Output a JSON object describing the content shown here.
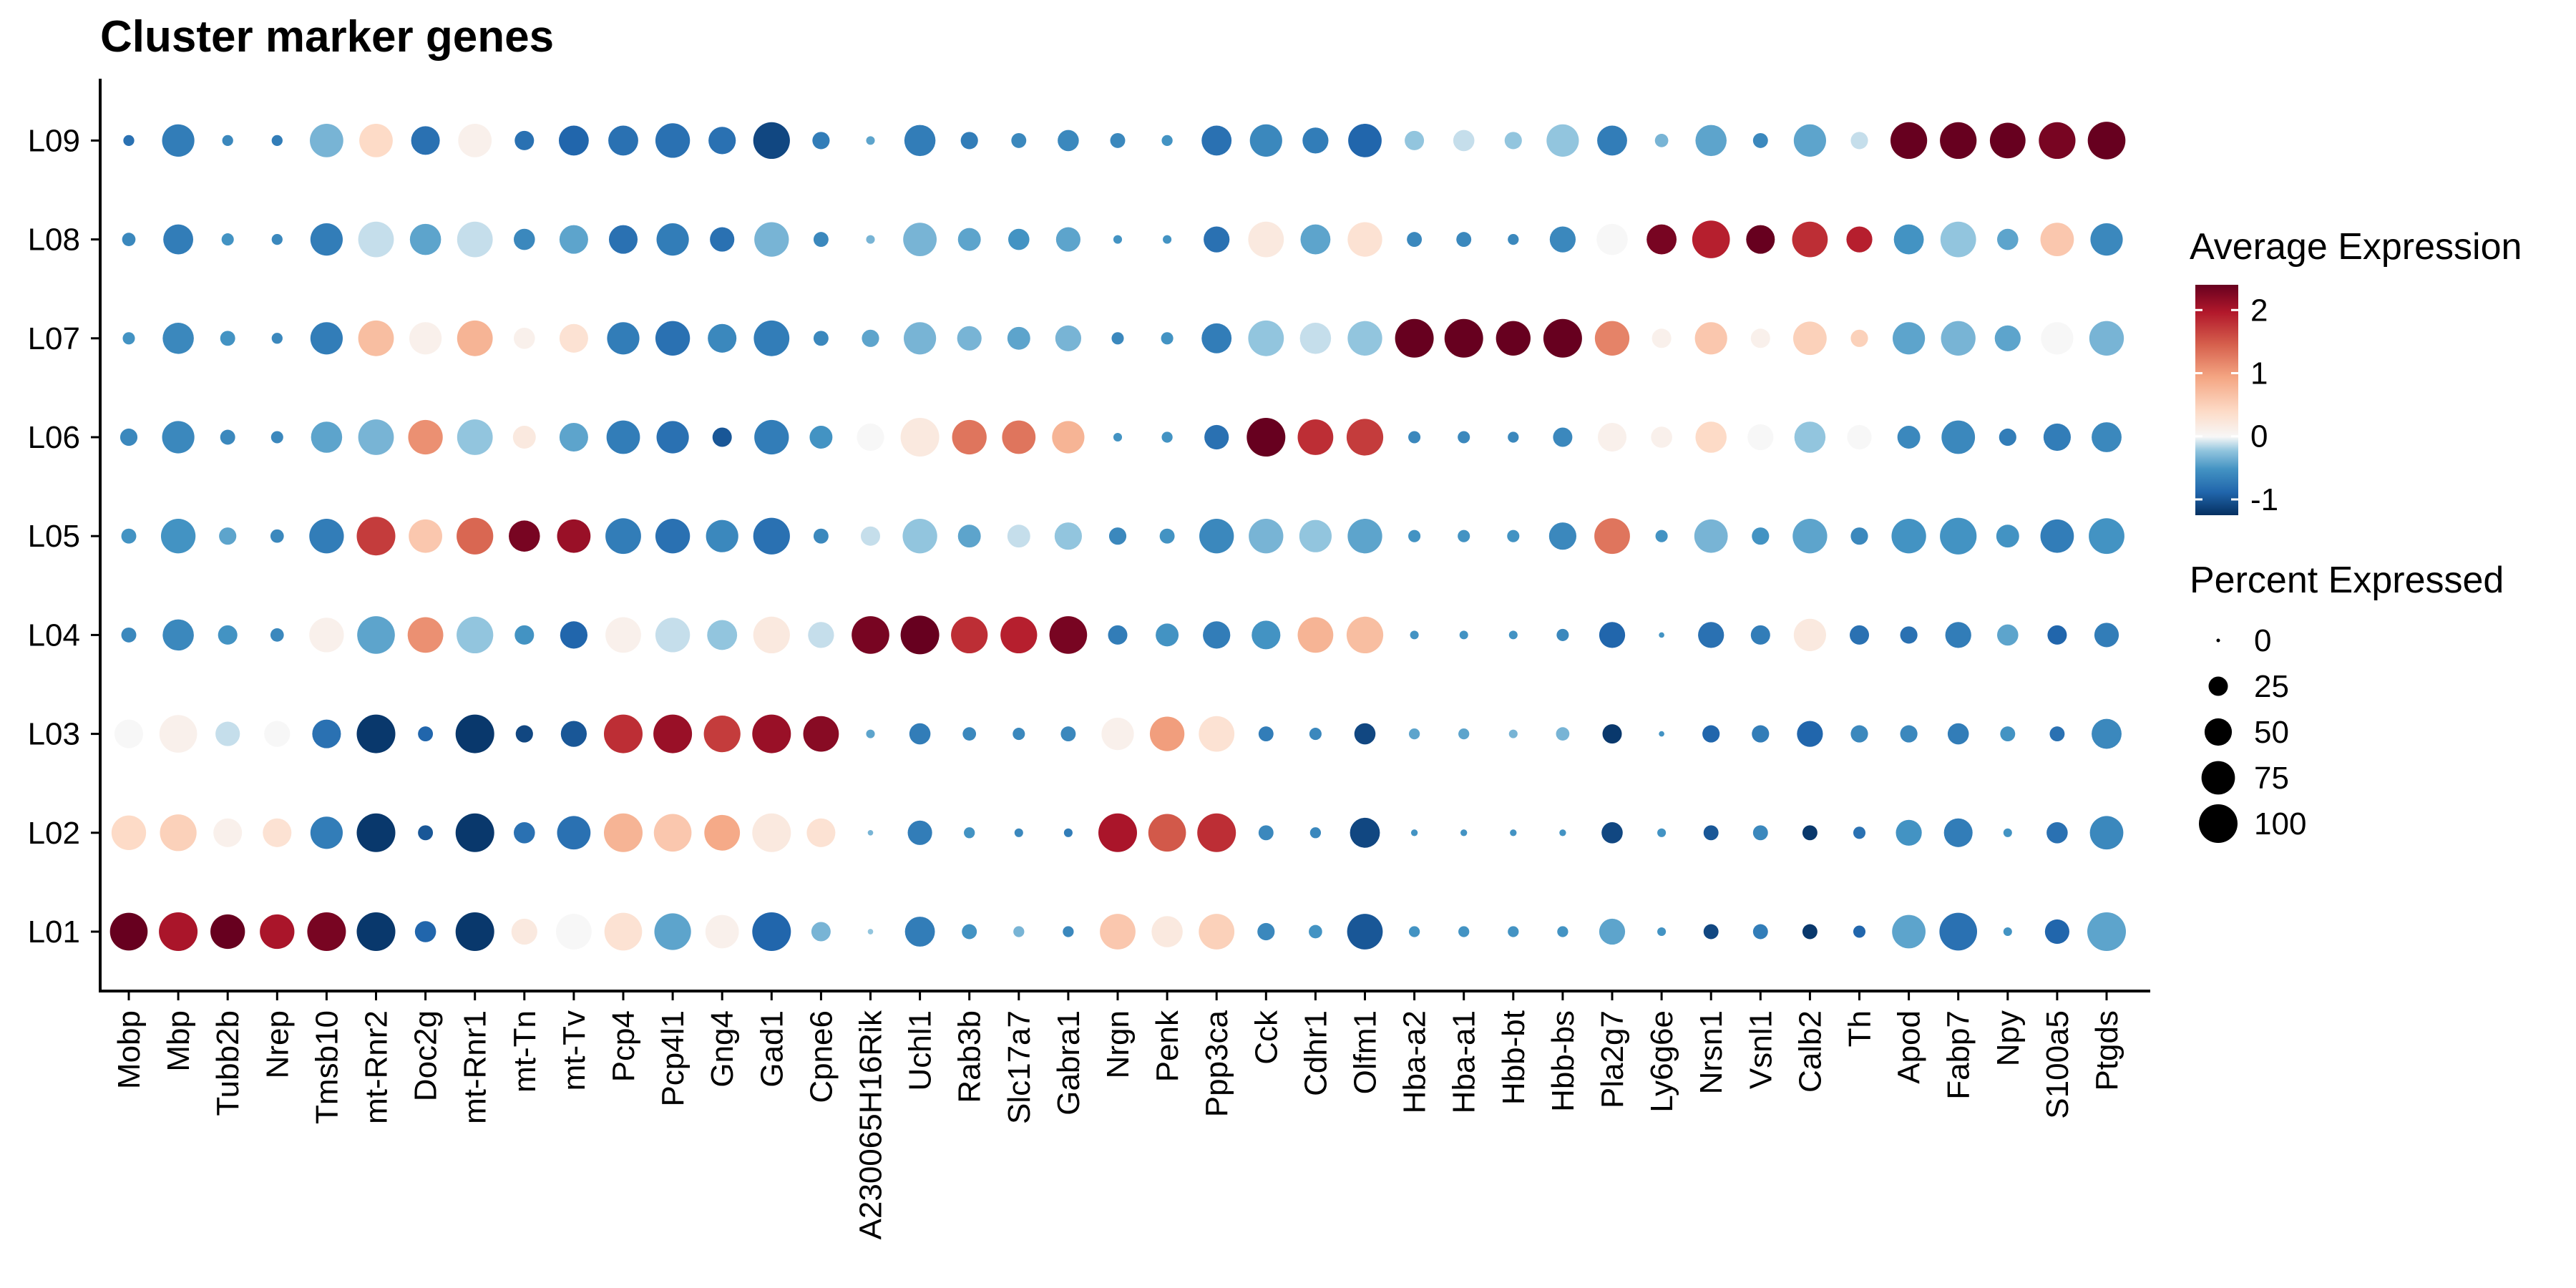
{
  "chart_data": {
    "type": "dotplot",
    "title": "Cluster marker genes",
    "xlabel": "",
    "ylabel": "",
    "genes": [
      "Mobp",
      "Mbp",
      "Tubb2b",
      "Nrep",
      "Tmsb10",
      "mt-Rnr2",
      "Doc2g",
      "mt-Rnr1",
      "mt-Tn",
      "mt-Tv",
      "Pcp4",
      "Pcp4l1",
      "Gng4",
      "Gad1",
      "Cpne6",
      "A230065H16Rik",
      "Uchl1",
      "Rab3b",
      "Slc17a7",
      "Gabra1",
      "Nrgn",
      "Penk",
      "Ppp3ca",
      "Cck",
      "Cdhr1",
      "Olfm1",
      "Hba-a2",
      "Hba-a1",
      "Hbb-bt",
      "Hbb-bs",
      "Pla2g7",
      "Ly6g6e",
      "Nrsn1",
      "Vsnl1",
      "Calb2",
      "Th",
      "Apod",
      "Fabp7",
      "Npy",
      "S100a5",
      "Ptgds"
    ],
    "clusters": [
      "L01",
      "L02",
      "L03",
      "L04",
      "L05",
      "L06",
      "L07",
      "L08",
      "L09"
    ],
    "color_scale": {
      "name": "Average Expression",
      "range": [
        -1.25,
        2.4
      ],
      "ticks": [
        -1,
        0,
        1,
        2
      ],
      "low_color": "#053061",
      "mid_color": "#f7f7f7",
      "high_color": "#67001f"
    },
    "size_scale": {
      "name": "Percent Expressed",
      "range": [
        0,
        100
      ],
      "ticks": [
        0,
        25,
        50,
        75,
        100
      ]
    },
    "grid": false,
    "legend_position": "right",
    "avg_expression": [
      [
        2.4,
        2.0,
        2.4,
        2.0,
        2.3,
        -1.2,
        -0.9,
        -1.2,
        0.2,
        0.0,
        0.3,
        -0.4,
        0.1,
        -0.9,
        -0.3,
        -0.2,
        -0.7,
        -0.5,
        -0.3,
        -0.6,
        0.6,
        0.2,
        0.5,
        -0.6,
        -0.5,
        -1.0,
        -0.5,
        -0.5,
        -0.5,
        -0.5,
        -0.4,
        -0.5,
        -1.1,
        -0.7,
        -1.2,
        -0.9,
        -0.4,
        -0.8,
        -0.5,
        -0.9,
        -0.4
      ],
      [
        0.4,
        0.5,
        0.1,
        0.3,
        -0.7,
        -1.2,
        -1.0,
        -1.2,
        -0.8,
        -0.8,
        0.8,
        0.6,
        0.9,
        0.2,
        0.3,
        -0.3,
        -0.7,
        -0.5,
        -0.6,
        -0.7,
        2.0,
        1.5,
        1.8,
        -0.6,
        -0.6,
        -1.1,
        -0.5,
        -0.5,
        -0.5,
        -0.5,
        -1.1,
        -0.5,
        -1.0,
        -0.6,
        -1.2,
        -0.8,
        -0.5,
        -0.7,
        -0.5,
        -0.8,
        -0.6
      ],
      [
        0.0,
        0.1,
        -0.1,
        0.0,
        -0.8,
        -1.2,
        -0.9,
        -1.2,
        -1.1,
        -1.0,
        1.8,
        2.1,
        1.7,
        2.1,
        2.2,
        -0.4,
        -0.7,
        -0.6,
        -0.6,
        -0.6,
        0.1,
        1.0,
        0.3,
        -0.7,
        -0.6,
        -1.1,
        -0.4,
        -0.4,
        -0.3,
        -0.3,
        -1.2,
        -0.5,
        -0.9,
        -0.7,
        -0.9,
        -0.6,
        -0.6,
        -0.7,
        -0.5,
        -0.8,
        -0.6
      ],
      [
        -0.6,
        -0.6,
        -0.5,
        -0.6,
        0.1,
        -0.4,
        1.1,
        -0.2,
        -0.5,
        -0.9,
        0.1,
        -0.1,
        -0.2,
        0.2,
        -0.1,
        2.3,
        2.4,
        1.8,
        1.9,
        2.3,
        -0.7,
        -0.5,
        -0.7,
        -0.5,
        0.8,
        0.7,
        -0.5,
        -0.5,
        -0.5,
        -0.6,
        -0.9,
        -0.5,
        -0.8,
        -0.7,
        0.2,
        -0.8,
        -0.8,
        -0.7,
        -0.4,
        -0.9,
        -0.7
      ],
      [
        -0.5,
        -0.5,
        -0.4,
        -0.6,
        -0.7,
        1.7,
        0.6,
        1.4,
        2.3,
        2.1,
        -0.7,
        -0.8,
        -0.6,
        -0.8,
        -0.6,
        -0.1,
        -0.2,
        -0.4,
        -0.1,
        -0.2,
        -0.6,
        -0.5,
        -0.6,
        -0.3,
        -0.2,
        -0.4,
        -0.5,
        -0.5,
        -0.5,
        -0.6,
        1.3,
        -0.5,
        -0.3,
        -0.5,
        -0.4,
        -0.6,
        -0.5,
        -0.5,
        -0.5,
        -0.7,
        -0.5
      ],
      [
        -0.6,
        -0.6,
        -0.6,
        -0.6,
        -0.4,
        -0.3,
        1.1,
        -0.2,
        0.2,
        -0.4,
        -0.7,
        -0.8,
        -1.0,
        -0.7,
        -0.5,
        0.0,
        0.2,
        1.3,
        1.3,
        0.8,
        -0.5,
        -0.5,
        -0.8,
        2.4,
        1.8,
        1.7,
        -0.6,
        -0.6,
        -0.6,
        -0.6,
        0.1,
        0.1,
        0.4,
        0.0,
        -0.2,
        0.0,
        -0.6,
        -0.6,
        -0.7,
        -0.7,
        -0.6
      ],
      [
        -0.5,
        -0.6,
        -0.5,
        -0.6,
        -0.7,
        0.7,
        0.1,
        0.8,
        0.1,
        0.3,
        -0.7,
        -0.8,
        -0.6,
        -0.7,
        -0.6,
        -0.4,
        -0.3,
        -0.3,
        -0.4,
        -0.3,
        -0.6,
        -0.5,
        -0.7,
        -0.2,
        -0.1,
        -0.2,
        2.4,
        2.4,
        2.4,
        2.4,
        1.2,
        0.1,
        0.6,
        0.1,
        0.5,
        0.5,
        -0.4,
        -0.3,
        -0.4,
        0.0,
        -0.3
      ],
      [
        -0.6,
        -0.7,
        -0.5,
        -0.6,
        -0.7,
        -0.1,
        -0.4,
        -0.1,
        -0.6,
        -0.4,
        -0.8,
        -0.7,
        -0.8,
        -0.3,
        -0.6,
        -0.3,
        -0.3,
        -0.4,
        -0.5,
        -0.4,
        -0.5,
        -0.5,
        -0.8,
        0.2,
        -0.4,
        0.3,
        -0.6,
        -0.6,
        -0.6,
        -0.6,
        0.0,
        2.3,
        1.9,
        2.4,
        1.8,
        1.9,
        -0.5,
        -0.2,
        -0.4,
        0.6,
        -0.6
      ],
      [
        -0.8,
        -0.7,
        -0.6,
        -0.7,
        -0.3,
        0.4,
        -0.8,
        0.1,
        -0.8,
        -0.9,
        -0.8,
        -0.8,
        -0.8,
        -1.1,
        -0.7,
        -0.4,
        -0.7,
        -0.7,
        -0.6,
        -0.6,
        -0.6,
        -0.5,
        -0.8,
        -0.6,
        -0.7,
        -0.9,
        -0.2,
        -0.1,
        -0.2,
        -0.2,
        -0.7,
        -0.3,
        -0.4,
        -0.6,
        -0.4,
        -0.1,
        2.4,
        2.4,
        2.4,
        2.3,
        2.4
      ]
    ],
    "pct_expressed": [
      [
        95,
        100,
        80,
        80,
        100,
        100,
        30,
        100,
        45,
        85,
        95,
        90,
        75,
        100,
        25,
        2,
        60,
        15,
        8,
        8,
        85,
        65,
        85,
        20,
        12,
        85,
        8,
        8,
        8,
        8,
        45,
        5,
        15,
        15,
        15,
        10,
        75,
        95,
        5,
        40,
        100
      ],
      [
        80,
        90,
        55,
        55,
        70,
        100,
        15,
        100,
        30,
        75,
        100,
        95,
        85,
        100,
        55,
        2,
        40,
        8,
        5,
        5,
        100,
        95,
        100,
        15,
        8,
        60,
        3,
        3,
        3,
        3,
        30,
        5,
        15,
        15,
        15,
        10,
        45,
        55,
        5,
        30,
        75
      ],
      [
        55,
        95,
        40,
        45,
        55,
        100,
        15,
        100,
        20,
        45,
        100,
        100,
        90,
        100,
        85,
        5,
        30,
        12,
        10,
        15,
        70,
        80,
        85,
        15,
        10,
        30,
        8,
        8,
        5,
        12,
        25,
        2,
        20,
        20,
        45,
        20,
        20,
        30,
        15,
        15,
        60
      ],
      [
        15,
        65,
        25,
        12,
        80,
        95,
        85,
        90,
        25,
        50,
        85,
        80,
        60,
        90,
        45,
        95,
        100,
        90,
        90,
        95,
        25,
        35,
        50,
        55,
        85,
        90,
        5,
        5,
        5,
        10,
        45,
        2,
        45,
        25,
        70,
        25,
        20,
        45,
        30,
        25,
        40
      ],
      [
        15,
        80,
        20,
        12,
        80,
        100,
        75,
        90,
        65,
        75,
        85,
        80,
        70,
        90,
        15,
        25,
        80,
        35,
        35,
        50,
        20,
        15,
        80,
        80,
        70,
        80,
        10,
        10,
        10,
        50,
        85,
        10,
        75,
        20,
        80,
        20,
        80,
        90,
        35,
        75,
        85
      ],
      [
        20,
        70,
        15,
        10,
        65,
        85,
        80,
        85,
        35,
        55,
        75,
        70,
        25,
        80,
        35,
        50,
        100,
        80,
        75,
        70,
        5,
        8,
        40,
        100,
        85,
        90,
        10,
        10,
        8,
        25,
        55,
        30,
        65,
        45,
        65,
        40,
        35,
        75,
        20,
        50,
        60
      ],
      [
        10,
        65,
        15,
        8,
        70,
        85,
        70,
        85,
        30,
        55,
        70,
        80,
        55,
        85,
        15,
        20,
        70,
        40,
        35,
        45,
        10,
        10,
        60,
        85,
        65,
        80,
        100,
        100,
        80,
        100,
        80,
        25,
        70,
        25,
        75,
        20,
        70,
        80,
        45,
        70,
        80
      ],
      [
        12,
        60,
        10,
        8,
        70,
        85,
        65,
        85,
        30,
        55,
        55,
        70,
        40,
        80,
        15,
        5,
        75,
        35,
        30,
        40,
        5,
        5,
        45,
        85,
        60,
        80,
        15,
        15,
        8,
        45,
        65,
        60,
        95,
        55,
        85,
        45,
        60,
        85,
        30,
        75,
        70
      ],
      [
        8,
        70,
        8,
        8,
        75,
        75,
        55,
        75,
        25,
        60,
        60,
        80,
        50,
        90,
        20,
        5,
        65,
        20,
        15,
        30,
        15,
        8,
        60,
        70,
        45,
        75,
        25,
        30,
        20,
        70,
        60,
        12,
        65,
        15,
        70,
        20,
        90,
        90,
        85,
        90,
        95
      ]
    ]
  }
}
